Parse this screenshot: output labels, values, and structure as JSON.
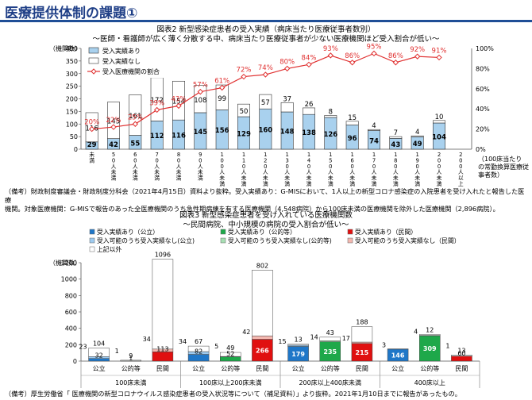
{
  "page": {
    "title": "医療提供体制の課題①"
  },
  "chart_data": [
    {
      "type": "bar",
      "title": "図表2  新型感染症患者の受入実績（病床当たり医療従事者数別）",
      "subtitle": "～医師・看護師が広く薄く分散する中、病床当たり医療従事者が少ない医療機関ほど受入割合が低い～",
      "ylabel": "（機関数）",
      "xlabel": "（100床当たりの常勤換算医療従事者数）",
      "ylim": [
        0,
        400
      ],
      "y2lim": [
        0,
        100
      ],
      "yticks": [
        "0",
        "50",
        "100",
        "150",
        "200",
        "250",
        "300",
        "350",
        "400"
      ],
      "y2ticks": [
        "0%",
        "20%",
        "40%",
        "60%",
        "80%",
        "100%"
      ],
      "categories": [
        "未満",
        "50人未満",
        "60人未満",
        "70人未満",
        "80人未満",
        "90人未満",
        "100人未満",
        "110人未満",
        "120人未満",
        "130人未満",
        "140人未満",
        "150人未満",
        "160人未満",
        "170人未満",
        "180人未満",
        "190人未満",
        "200人未満",
        "200人以上"
      ],
      "series": [
        {
          "name": "受入実績あり",
          "color": "#a9d1ee",
          "values": [
            29,
            42,
            55,
            112,
            116,
            145,
            156,
            129,
            160,
            148,
            138,
            126,
            96,
            74,
            43,
            49,
            104,
            0
          ]
        },
        {
          "name": "受入実績なし",
          "color": "#ffffff",
          "values": [
            116,
            145,
            161,
            172,
            154,
            108,
            99,
            50,
            57,
            37,
            26,
            8,
            15,
            4,
            7,
            4,
            10,
            0
          ]
        },
        {
          "name": "受入医療機関の割合",
          "color": "#e03030",
          "values": [
            20,
            22,
            25,
            39,
            43,
            57,
            61,
            72,
            74,
            80,
            84,
            93,
            86,
            95,
            86,
            92,
            91,
            null
          ]
        }
      ],
      "bar_labels_low": [
        "29",
        "42",
        "55",
        "112",
        "116",
        "145",
        "156",
        "129",
        "160",
        "148",
        "138",
        "126",
        "96",
        "74",
        "43",
        "49",
        "104"
      ],
      "bar_labels_high": [
        "116",
        "145",
        "161",
        "172",
        "154",
        "108",
        "99",
        "50",
        "57",
        "37",
        "26",
        "8",
        "15",
        "4",
        "7",
        "4",
        "10"
      ],
      "pct_labels": [
        "20%",
        "22%",
        "25%",
        "39%",
        "43%",
        "57%",
        "61%",
        "72%",
        "74%",
        "80%",
        "84%",
        "93%",
        "86%",
        "95%",
        "86%",
        "92%",
        "91%"
      ],
      "legend": [
        "受入実績あり",
        "受入実績なし",
        "受入医療機関の割合"
      ],
      "xlabels_vertical": [
        "未満",
        "50人\n未満",
        "60人\n未満",
        "70人\n未満",
        "80人\n未満",
        "90人\n未満",
        "100人\n未満",
        "110人\n未満",
        "120人\n未満",
        "130人\n未満",
        "140人\n未満",
        "150人\n未満",
        "160人\n未満",
        "170人\n未満",
        "180人\n未満",
        "190人\n未満",
        "200人\n未満",
        "200人\n以上"
      ]
    },
    {
      "type": "bar",
      "title": "図表3  新型感染症患者を受け入れている医療機関数",
      "subtitle": "～民間病院、中小規模の病院の受入割合が低い～",
      "ylabel": "（機関数）",
      "ylim": [
        0,
        1200
      ],
      "yticks": [
        "0",
        "200",
        "400",
        "600",
        "800",
        "1000",
        "1200"
      ],
      "groups": [
        "100床未満",
        "100床以上200床未満",
        "200床以上400床未満",
        "400床以上"
      ],
      "subcategories": [
        "公立",
        "公的等",
        "民間"
      ],
      "legend": [
        {
          "label": "受入実績あり（公立）",
          "color": "#1f77c8"
        },
        {
          "label": "受入実績あり（公的等）",
          "color": "#1ea84a"
        },
        {
          "label": "受入実績あり（民間）",
          "color": "#e01010"
        },
        {
          "label": "受入可能のうち受入実績なし(公立)",
          "color": "#9ecbf0"
        },
        {
          "label": "受入可能のうち受入実績なし(公的等)",
          "color": "#a8e0b4"
        },
        {
          "label": "受入可能のうち受入実績なし（民間）",
          "color": "#f4b8b0"
        },
        {
          "label": "上記以外",
          "color": "#ffffff"
        }
      ],
      "bars": [
        {
          "group": "100床未満",
          "sub": "公立",
          "accept": 32,
          "capable": 23,
          "other": 104
        },
        {
          "group": "100床未満",
          "sub": "公的等",
          "accept": 1,
          "capable": 1,
          "other": 9
        },
        {
          "group": "100床未満",
          "sub": "民間",
          "accept": 113,
          "capable": 34,
          "other": 1096
        },
        {
          "group": "100床以上200床未満",
          "sub": "公立",
          "accept": 82,
          "capable": 34,
          "other": 67
        },
        {
          "group": "100床以上200床未満",
          "sub": "公的等",
          "accept": 52,
          "capable": 5,
          "other": 49
        },
        {
          "group": "100床以上200床未満",
          "sub": "民間",
          "accept": 266,
          "capable": 42,
          "other": 802
        },
        {
          "group": "200床以上400床未満",
          "sub": "公立",
          "accept": 179,
          "capable": 15,
          "other": 13
        },
        {
          "group": "200床以上400床未満",
          "sub": "公的等",
          "accept": 235,
          "capable": 14,
          "other": 43
        },
        {
          "group": "200床以上400床未満",
          "sub": "民間",
          "accept": 215,
          "capable": 17,
          "other": 188
        },
        {
          "group": "400床以上",
          "sub": "公立",
          "accept": 146,
          "capable": 3,
          "other": 0
        },
        {
          "group": "400床以上",
          "sub": "公的等",
          "accept": 309,
          "capable": 4,
          "other": 12
        },
        {
          "group": "400床以上",
          "sub": "民間",
          "accept": 60,
          "capable": 1,
          "other": 13
        }
      ]
    }
  ],
  "notes": {
    "fig2_note_line1": "（備考）財政制度審議会・財政制度分科会（2021年4月15日）資料より抜粋。受入実績あり：G-MISにおいて、1人以上の新型コロナ感染症の入院患者を受け入れたと報告した医療",
    "fig2_note_line2": "機関。対象医療機関：G-MISで報告のあった全医療機関のうち急性期病棟を有する医療機関（4,548病院）から100床未満の医療機関を除外した医療機関（2,896病院）。",
    "fig3_note": "（備考）厚生労働省「 医療機関の新型コロナウイルス感染症患者の受入状況等について（補足資料）」より抜粋。2021年1月10日までに報告があったもの。"
  }
}
